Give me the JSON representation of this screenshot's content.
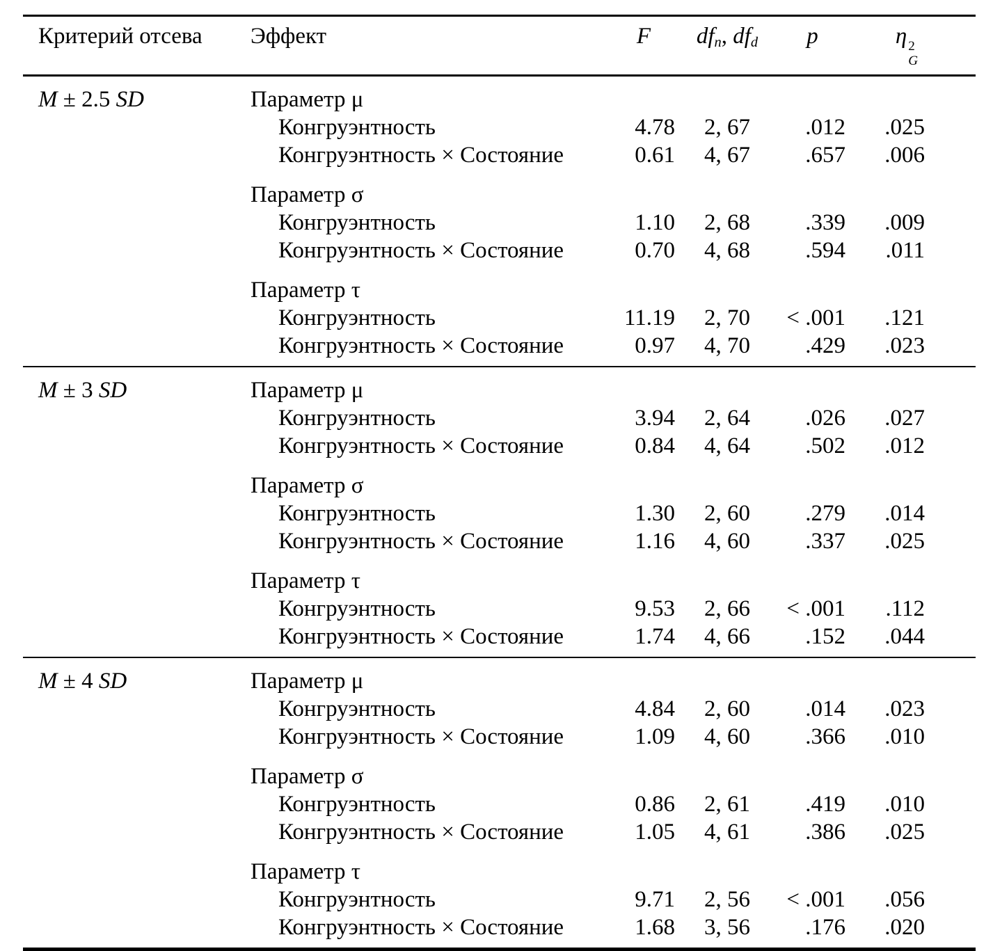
{
  "header": {
    "criterion": "Критерий отсева",
    "effect": "Эффект",
    "F": "F",
    "df": {
      "base1": "df",
      "sub1": "n",
      "sep": ", ",
      "base2": "df",
      "sub2": "d"
    },
    "p": "p",
    "eta": {
      "base": "η",
      "sup": "2",
      "sub": "G"
    }
  },
  "sections": [
    {
      "criterion": {
        "m": "M",
        "mid": "± 2.5",
        "sd": "SD"
      },
      "groups": [
        {
          "title": "Параметр μ",
          "rows": [
            {
              "effect": "Конгруэнтность",
              "F": "4.78",
              "df": "2, 67",
              "p": ".012",
              "eta": ".025"
            },
            {
              "effect": "Конгруэнтность × Состояние",
              "F": "0.61",
              "df": "4, 67",
              "p": ".657",
              "eta": ".006"
            }
          ]
        },
        {
          "title": "Параметр σ",
          "rows": [
            {
              "effect": "Конгруэнтность",
              "F": "1.10",
              "df": "2, 68",
              "p": ".339",
              "eta": ".009"
            },
            {
              "effect": "Конгруэнтность × Состояние",
              "F": "0.70",
              "df": "4, 68",
              "p": ".594",
              "eta": ".011"
            }
          ]
        },
        {
          "title": "Параметр τ",
          "rows": [
            {
              "effect": "Конгруэнтность",
              "F": "11.19",
              "df": "2, 70",
              "p": "< .001",
              "eta": ".121"
            },
            {
              "effect": "Конгруэнтность × Состояние",
              "F": "0.97",
              "df": "4, 70",
              "p": ".429",
              "eta": ".023"
            }
          ]
        }
      ]
    },
    {
      "criterion": {
        "m": "M",
        "mid": "± 3",
        "sd": "SD"
      },
      "groups": [
        {
          "title": "Параметр μ",
          "rows": [
            {
              "effect": "Конгруэнтность",
              "F": "3.94",
              "df": "2, 64",
              "p": ".026",
              "eta": ".027"
            },
            {
              "effect": "Конгруэнтность × Состояние",
              "F": "0.84",
              "df": "4, 64",
              "p": ".502",
              "eta": ".012"
            }
          ]
        },
        {
          "title": "Параметр σ",
          "rows": [
            {
              "effect": "Конгруэнтность",
              "F": "1.30",
              "df": "2, 60",
              "p": ".279",
              "eta": ".014"
            },
            {
              "effect": "Конгруэнтность × Состояние",
              "F": "1.16",
              "df": "4, 60",
              "p": ".337",
              "eta": ".025"
            }
          ]
        },
        {
          "title": "Параметр τ",
          "rows": [
            {
              "effect": "Конгруэнтность",
              "F": "9.53",
              "df": "2, 66",
              "p": "< .001",
              "eta": ".112"
            },
            {
              "effect": "Конгруэнтность × Состояние",
              "F": "1.74",
              "df": "4, 66",
              "p": ".152",
              "eta": ".044"
            }
          ]
        }
      ]
    },
    {
      "criterion": {
        "m": "M",
        "mid": "± 4",
        "sd": "SD"
      },
      "groups": [
        {
          "title": "Параметр μ",
          "rows": [
            {
              "effect": "Конгруэнтность",
              "F": "4.84",
              "df": "2, 60",
              "p": ".014",
              "eta": ".023"
            },
            {
              "effect": "Конгруэнтность × Состояние",
              "F": "1.09",
              "df": "4, 60",
              "p": ".366",
              "eta": ".010"
            }
          ]
        },
        {
          "title": "Параметр σ",
          "rows": [
            {
              "effect": "Конгруэнтность",
              "F": "0.86",
              "df": "2, 61",
              "p": ".419",
              "eta": ".010"
            },
            {
              "effect": "Конгруэнтность × Состояние",
              "F": "1.05",
              "df": "4, 61",
              "p": ".386",
              "eta": ".025"
            }
          ]
        },
        {
          "title": "Параметр τ",
          "rows": [
            {
              "effect": "Конгруэнтность",
              "F": "9.71",
              "df": "2, 56",
              "p": "< .001",
              "eta": ".056"
            },
            {
              "effect": "Конгруэнтность × Состояние",
              "F": "1.68",
              "df": "3, 56",
              "p": ".176",
              "eta": ".020"
            }
          ]
        }
      ]
    }
  ]
}
